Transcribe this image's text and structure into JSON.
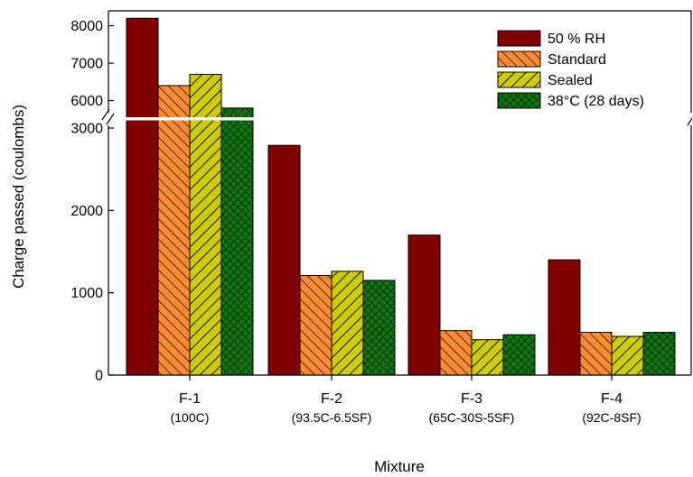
{
  "chart_data": {
    "type": "bar",
    "xlabel": "Mixture",
    "ylabel": "Charge passed (coulombs)",
    "categories": [
      "F-1",
      "F-2",
      "F-3",
      "F-4"
    ],
    "category_sublabels": [
      "(100C)",
      "(93.5C-6.5SF)",
      "(65C-30S-5SF)",
      "(92C-8SF)"
    ],
    "series": [
      {
        "name": "50 % RH",
        "color": "#800000",
        "pattern": "solid",
        "values": [
          8200,
          2790,
          1700,
          1400
        ]
      },
      {
        "name": "Standard",
        "color": "#ff8c33",
        "pattern": "diagonal-hatch",
        "values": [
          6400,
          1210,
          540,
          520
        ]
      },
      {
        "name": "Sealed",
        "color": "#cccc00",
        "pattern": "diagonal-hatch",
        "values": [
          6700,
          1260,
          430,
          470
        ]
      },
      {
        "name": "38°C (28 days)",
        "color": "#0b7a0b",
        "pattern": "crosshatch",
        "values": [
          5800,
          1150,
          490,
          520
        ]
      }
    ],
    "y_axis": {
      "broken": true,
      "lower_range": [
        0,
        3000
      ],
      "upper_range": [
        5000,
        8400
      ],
      "lower_ticks": [
        0,
        1000,
        2000,
        3000
      ],
      "upper_ticks": [
        6000,
        7000,
        8000
      ]
    },
    "legend_position": "top-right",
    "grid": false
  }
}
